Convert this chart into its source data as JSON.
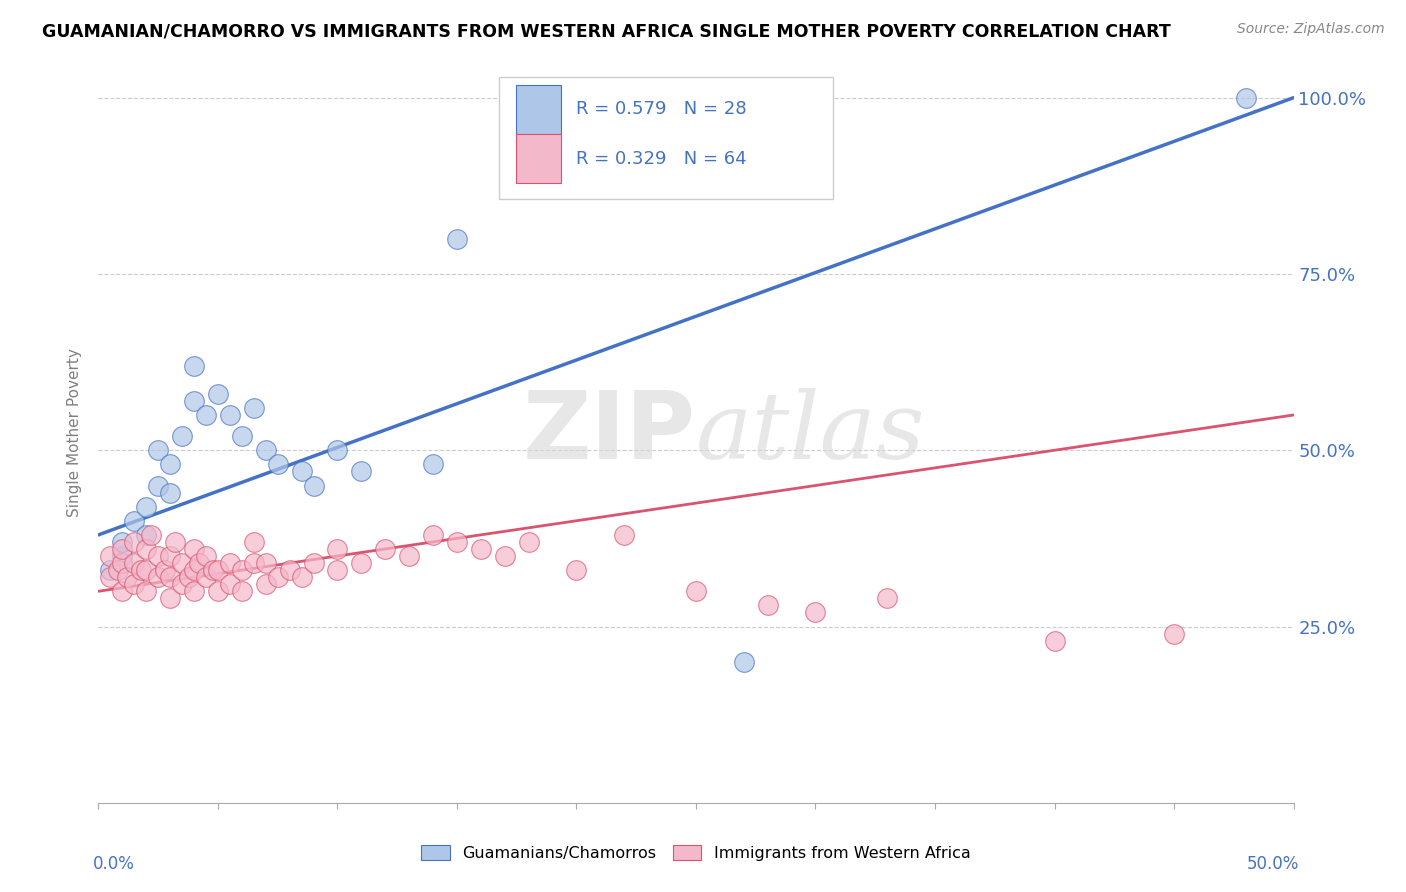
{
  "title": "GUAMANIAN/CHAMORRO VS IMMIGRANTS FROM WESTERN AFRICA SINGLE MOTHER POVERTY CORRELATION CHART",
  "source": "Source: ZipAtlas.com",
  "ylabel": "Single Mother Poverty",
  "xlim": [
    0.0,
    0.5
  ],
  "ylim": [
    0.0,
    1.05
  ],
  "blue_R": 0.579,
  "blue_N": 28,
  "pink_R": 0.329,
  "pink_N": 64,
  "blue_color": "#aec6e8",
  "blue_line_color": "#4472c4",
  "pink_color": "#f4b8cb",
  "pink_line_color": "#d9546e",
  "legend_label_blue": "Guamanians/Chamorros",
  "legend_label_pink": "Immigrants from Western Africa",
  "blue_line_x": [
    0.0,
    0.5
  ],
  "blue_line_y": [
    0.38,
    1.0
  ],
  "pink_line_x": [
    0.0,
    0.5
  ],
  "pink_line_y": [
    0.3,
    0.55
  ],
  "blue_x": [
    0.005,
    0.01,
    0.01,
    0.015,
    0.02,
    0.02,
    0.025,
    0.025,
    0.03,
    0.03,
    0.035,
    0.04,
    0.04,
    0.045,
    0.05,
    0.055,
    0.06,
    0.065,
    0.07,
    0.075,
    0.085,
    0.09,
    0.1,
    0.11,
    0.14,
    0.15,
    0.27,
    0.48
  ],
  "blue_y": [
    0.33,
    0.35,
    0.37,
    0.4,
    0.38,
    0.42,
    0.45,
    0.5,
    0.44,
    0.48,
    0.52,
    0.57,
    0.62,
    0.55,
    0.58,
    0.55,
    0.52,
    0.56,
    0.5,
    0.48,
    0.47,
    0.45,
    0.5,
    0.47,
    0.48,
    0.8,
    0.2,
    1.0
  ],
  "pink_x": [
    0.005,
    0.005,
    0.008,
    0.01,
    0.01,
    0.01,
    0.012,
    0.015,
    0.015,
    0.015,
    0.018,
    0.02,
    0.02,
    0.02,
    0.022,
    0.025,
    0.025,
    0.028,
    0.03,
    0.03,
    0.03,
    0.032,
    0.035,
    0.035,
    0.038,
    0.04,
    0.04,
    0.04,
    0.042,
    0.045,
    0.045,
    0.048,
    0.05,
    0.05,
    0.055,
    0.055,
    0.06,
    0.06,
    0.065,
    0.065,
    0.07,
    0.07,
    0.075,
    0.08,
    0.085,
    0.09,
    0.1,
    0.1,
    0.11,
    0.12,
    0.13,
    0.14,
    0.15,
    0.16,
    0.17,
    0.18,
    0.2,
    0.22,
    0.25,
    0.28,
    0.3,
    0.33,
    0.4,
    0.45
  ],
  "pink_y": [
    0.32,
    0.35,
    0.33,
    0.3,
    0.34,
    0.36,
    0.32,
    0.31,
    0.34,
    0.37,
    0.33,
    0.3,
    0.33,
    0.36,
    0.38,
    0.32,
    0.35,
    0.33,
    0.29,
    0.32,
    0.35,
    0.37,
    0.31,
    0.34,
    0.32,
    0.3,
    0.33,
    0.36,
    0.34,
    0.32,
    0.35,
    0.33,
    0.3,
    0.33,
    0.31,
    0.34,
    0.3,
    0.33,
    0.34,
    0.37,
    0.31,
    0.34,
    0.32,
    0.33,
    0.32,
    0.34,
    0.33,
    0.36,
    0.34,
    0.36,
    0.35,
    0.38,
    0.37,
    0.36,
    0.35,
    0.37,
    0.33,
    0.38,
    0.3,
    0.28,
    0.27,
    0.29,
    0.23,
    0.24
  ]
}
